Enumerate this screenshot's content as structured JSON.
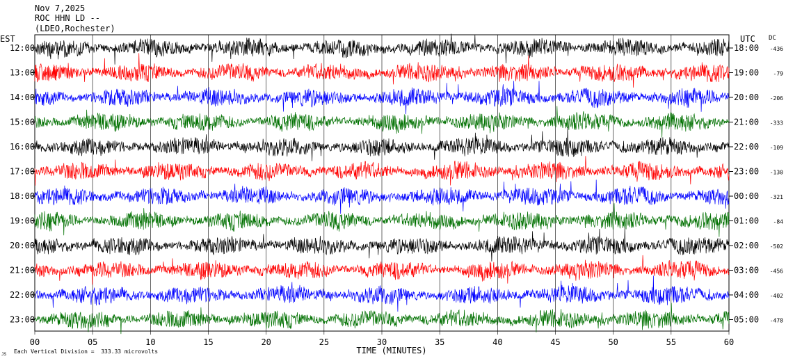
{
  "header": {
    "date": "Nov 7,2025",
    "station": "ROC HHN LD --",
    "location": "(LDEO,Rochester)"
  },
  "left_axis_label": "EST",
  "right_axis_label": "UTC",
  "dc_label": "DC",
  "footer": {
    "scale_note": "Each Vertical Division =  333.33 microvolts",
    "corner_mark": "JS"
  },
  "chart_data": {
    "type": "line",
    "xlabel": "TIME (MINUTES)",
    "xlim": [
      0,
      60
    ],
    "x_ticks": [
      "00",
      "05",
      "10",
      "15",
      "20",
      "25",
      "30",
      "35",
      "40",
      "45",
      "50",
      "55",
      "60"
    ],
    "colors": [
      "#000000",
      "#ff0000",
      "#0000ff",
      "#007000"
    ],
    "rows": [
      {
        "est": "12:00",
        "utc": "18:00",
        "dc": "-436",
        "color": "#000000"
      },
      {
        "est": "13:00",
        "utc": "19:00",
        "dc": "-79",
        "color": "#ff0000"
      },
      {
        "est": "14:00",
        "utc": "20:00",
        "dc": "-206",
        "color": "#0000ff"
      },
      {
        "est": "15:00",
        "utc": "21:00",
        "dc": "-333",
        "color": "#007000"
      },
      {
        "est": "16:00",
        "utc": "22:00",
        "dc": "-109",
        "color": "#000000"
      },
      {
        "est": "17:00",
        "utc": "23:00",
        "dc": "-130",
        "color": "#ff0000"
      },
      {
        "est": "18:00",
        "utc": "00:00",
        "dc": "-321",
        "color": "#0000ff"
      },
      {
        "est": "19:00",
        "utc": "01:00",
        "dc": "-84",
        "color": "#007000"
      },
      {
        "est": "20:00",
        "utc": "02:00",
        "dc": "-502",
        "color": "#000000"
      },
      {
        "est": "21:00",
        "utc": "03:00",
        "dc": "-456",
        "color": "#ff0000"
      },
      {
        "est": "22:00",
        "utc": "04:00",
        "dc": "-402",
        "color": "#0000ff"
      },
      {
        "est": "23:00",
        "utc": "05:00",
        "dc": "-478",
        "color": "#007000"
      }
    ]
  }
}
